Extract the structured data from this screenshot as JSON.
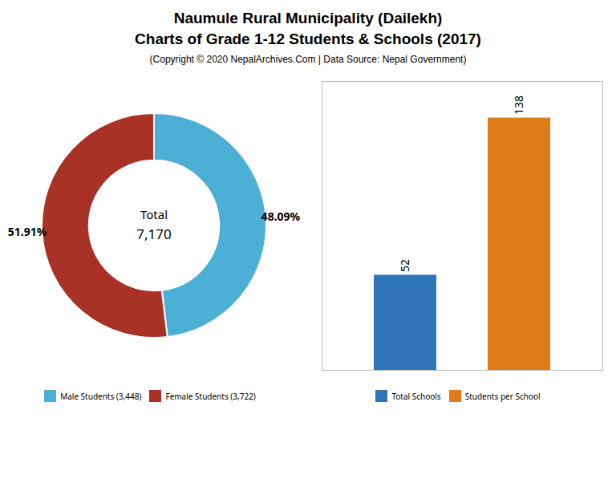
{
  "chart_data": [
    {
      "type": "pie",
      "title": "Naumule Rural Municipality (Dailekh)\nCharts of Grade 1-12 Students & Schools (2017)",
      "subtitle": "(Copyright © 2020 NepalArchives.Com | Data Source: Nepal Government)",
      "categories": [
        "Male Students (3,448)",
        "Female Students (3,722)"
      ],
      "values": [
        48.09,
        51.91
      ],
      "value_labels": [
        "48.09%",
        "51.91%"
      ],
      "colors": [
        "#4bafd6",
        "#a93226"
      ],
      "annotations": [
        "Total",
        "7,170"
      ],
      "data_labels": true,
      "legend": "bottom"
    },
    {
      "type": "bar",
      "categories": [
        "Total Schools",
        "Students per School"
      ],
      "values": [
        52,
        138
      ],
      "colors": [
        "#2e75b6",
        "#e07b1a"
      ],
      "ylim": [
        0,
        158
      ],
      "yticks": [],
      "tick_labels": false,
      "grid": false,
      "data_labels": true,
      "legend": "bottom"
    }
  ]
}
